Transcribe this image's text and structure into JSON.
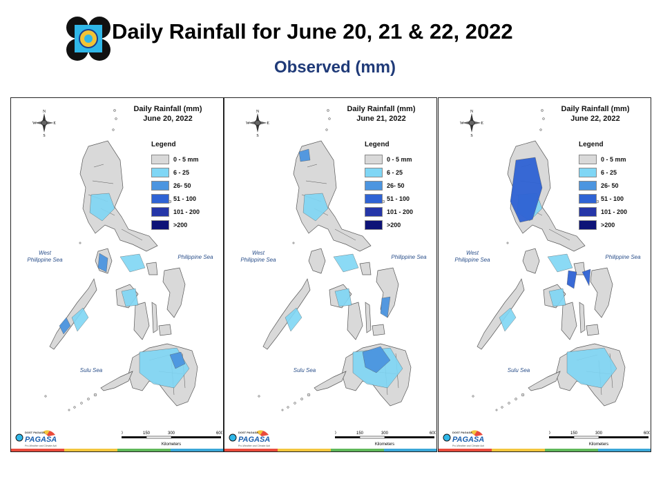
{
  "header": {
    "title": "Daily Rainfall for June 20, 21 & 22, 2022",
    "subtitle": "Observed (mm)"
  },
  "legend": {
    "title": "Legend",
    "items": [
      {
        "label": "0 - 5 mm",
        "color": "#d9d9d9"
      },
      {
        "label": "6 - 25",
        "color": "#7fd6f5"
      },
      {
        "label": "26- 50",
        "color": "#4c95e0"
      },
      {
        "label": "51 - 100",
        "color": "#2f63d4"
      },
      {
        "label": "101 - 200",
        "color": "#2536a8"
      },
      {
        "label": ">200",
        "color": "#0d1377"
      }
    ]
  },
  "panels": [
    {
      "title_line1": "Daily Rainfall (mm)",
      "title_line2": "June 20, 2022",
      "rain_color": "#7fd6f5",
      "accent_color": "#4c95e0"
    },
    {
      "title_line1": "Daily Rainfall (mm)",
      "title_line2": "June 21, 2022",
      "rain_color": "#7fd6f5",
      "accent_color": "#4c95e0"
    },
    {
      "title_line1": "Daily Rainfall (mm)",
      "title_line2": "June 22, 2022",
      "rain_color": "#7fd6f5",
      "accent_color": "#2f63d4"
    }
  ],
  "seas": {
    "west_line1": "West",
    "west_line2": "Philippine Sea",
    "east": "Philippine Sea",
    "sulu": "Sulu Sea"
  },
  "compass": {
    "n": "N",
    "s": "S",
    "e": "E",
    "w": "W"
  },
  "scale": {
    "ticks": [
      "0",
      "150",
      "300",
      "600"
    ],
    "unit": "Kilometers"
  },
  "footer": {
    "org": "PAGASA",
    "tagline": "Pro-Weather and Climate Activity",
    "prefix": "DOST PAGASA"
  },
  "colors": {
    "land": "#d9d9d9",
    "border": "#555555",
    "title_blue": "#1f3a78",
    "sea_text": "#2a4f8a",
    "stripe": [
      "#e94b3c",
      "#f3c63c",
      "#5fb85a",
      "#3aa7d8"
    ]
  }
}
